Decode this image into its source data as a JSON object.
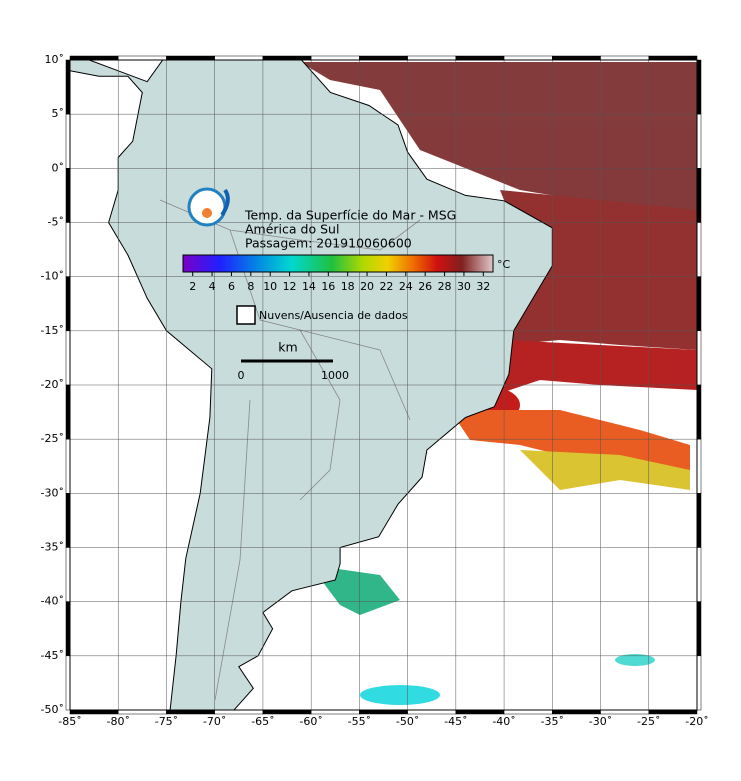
{
  "map": {
    "title": "Temp. da Superfície do Mar - MSG",
    "region": "América do Sul",
    "pass": "Passagem: 201910060600",
    "xlim": [
      -85,
      -20
    ],
    "ylim": [
      -50,
      10
    ],
    "xticks": [
      {
        "value": -85,
        "label": "-85˚"
      },
      {
        "value": -80,
        "label": "-80˚"
      },
      {
        "value": -75,
        "label": "-75˚"
      },
      {
        "value": -70,
        "label": "-70˚"
      },
      {
        "value": -65,
        "label": "-65˚"
      },
      {
        "value": -60,
        "label": "-60˚"
      },
      {
        "value": -55,
        "label": "-55˚"
      },
      {
        "value": -50,
        "label": "-50˚"
      },
      {
        "value": -45,
        "label": "-45˚"
      },
      {
        "value": -40,
        "label": "-40˚"
      },
      {
        "value": -35,
        "label": "-35˚"
      },
      {
        "value": -30,
        "label": "-30˚"
      },
      {
        "value": -25,
        "label": "-25˚"
      },
      {
        "value": -20,
        "label": "-20˚"
      }
    ],
    "yticks": [
      {
        "value": 10,
        "label": "10˚"
      },
      {
        "value": 5,
        "label": "5˚"
      },
      {
        "value": 0,
        "label": "0˚"
      },
      {
        "value": -5,
        "label": "-5˚"
      },
      {
        "value": -10,
        "label": "-10˚"
      },
      {
        "value": -15,
        "label": "-15˚"
      },
      {
        "value": -20,
        "label": "-20˚"
      },
      {
        "value": -25,
        "label": "-25˚"
      },
      {
        "value": -30,
        "label": "-30˚"
      },
      {
        "value": -35,
        "label": "-35˚"
      },
      {
        "value": -40,
        "label": "-40˚"
      },
      {
        "value": -45,
        "label": "-45˚"
      },
      {
        "value": -50,
        "label": "-50˚"
      }
    ],
    "colorbar": {
      "clim": [
        1,
        33
      ],
      "ticks": [
        2,
        4,
        6,
        8,
        10,
        12,
        14,
        16,
        18,
        20,
        22,
        24,
        26,
        28,
        30,
        32
      ],
      "unit": "°C"
    },
    "legend": "Nuvens/Ausencia de dados",
    "scale": {
      "unit": "km",
      "start": "0",
      "end": "1000"
    }
  }
}
